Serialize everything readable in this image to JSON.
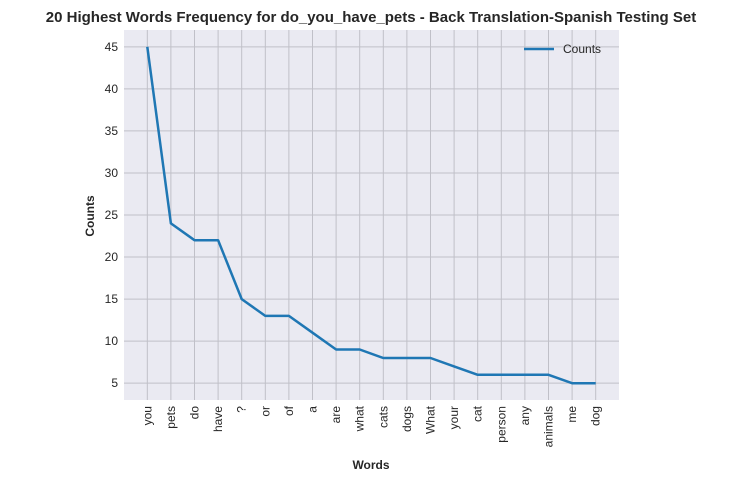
{
  "chart_data": {
    "type": "line",
    "title": "20 Highest Words Frequency for do_you_have_pets - Back Translation-Spanish Testing Set",
    "xlabel": "Words",
    "ylabel": "Counts",
    "categories": [
      "you",
      "pets",
      "do",
      "have",
      "?",
      "or",
      "of",
      "a",
      "are",
      "what",
      "cats",
      "dogs",
      "What",
      "your",
      "cat",
      "person",
      "any",
      "animals",
      "me",
      "dog"
    ],
    "series": [
      {
        "name": "Counts",
        "values": [
          45,
          24,
          22,
          22,
          15,
          13,
          13,
          11,
          9,
          9,
          8,
          8,
          8,
          7,
          6,
          6,
          6,
          6,
          5,
          5
        ],
        "color": "#1f77b4"
      }
    ],
    "yticks": [
      5,
      10,
      15,
      20,
      25,
      30,
      35,
      40,
      45
    ],
    "ylim": [
      3,
      47
    ],
    "grid": true,
    "legend_position": "top-right",
    "background_color": "#eaeaf2",
    "grid_color": "#c0c0c8"
  }
}
